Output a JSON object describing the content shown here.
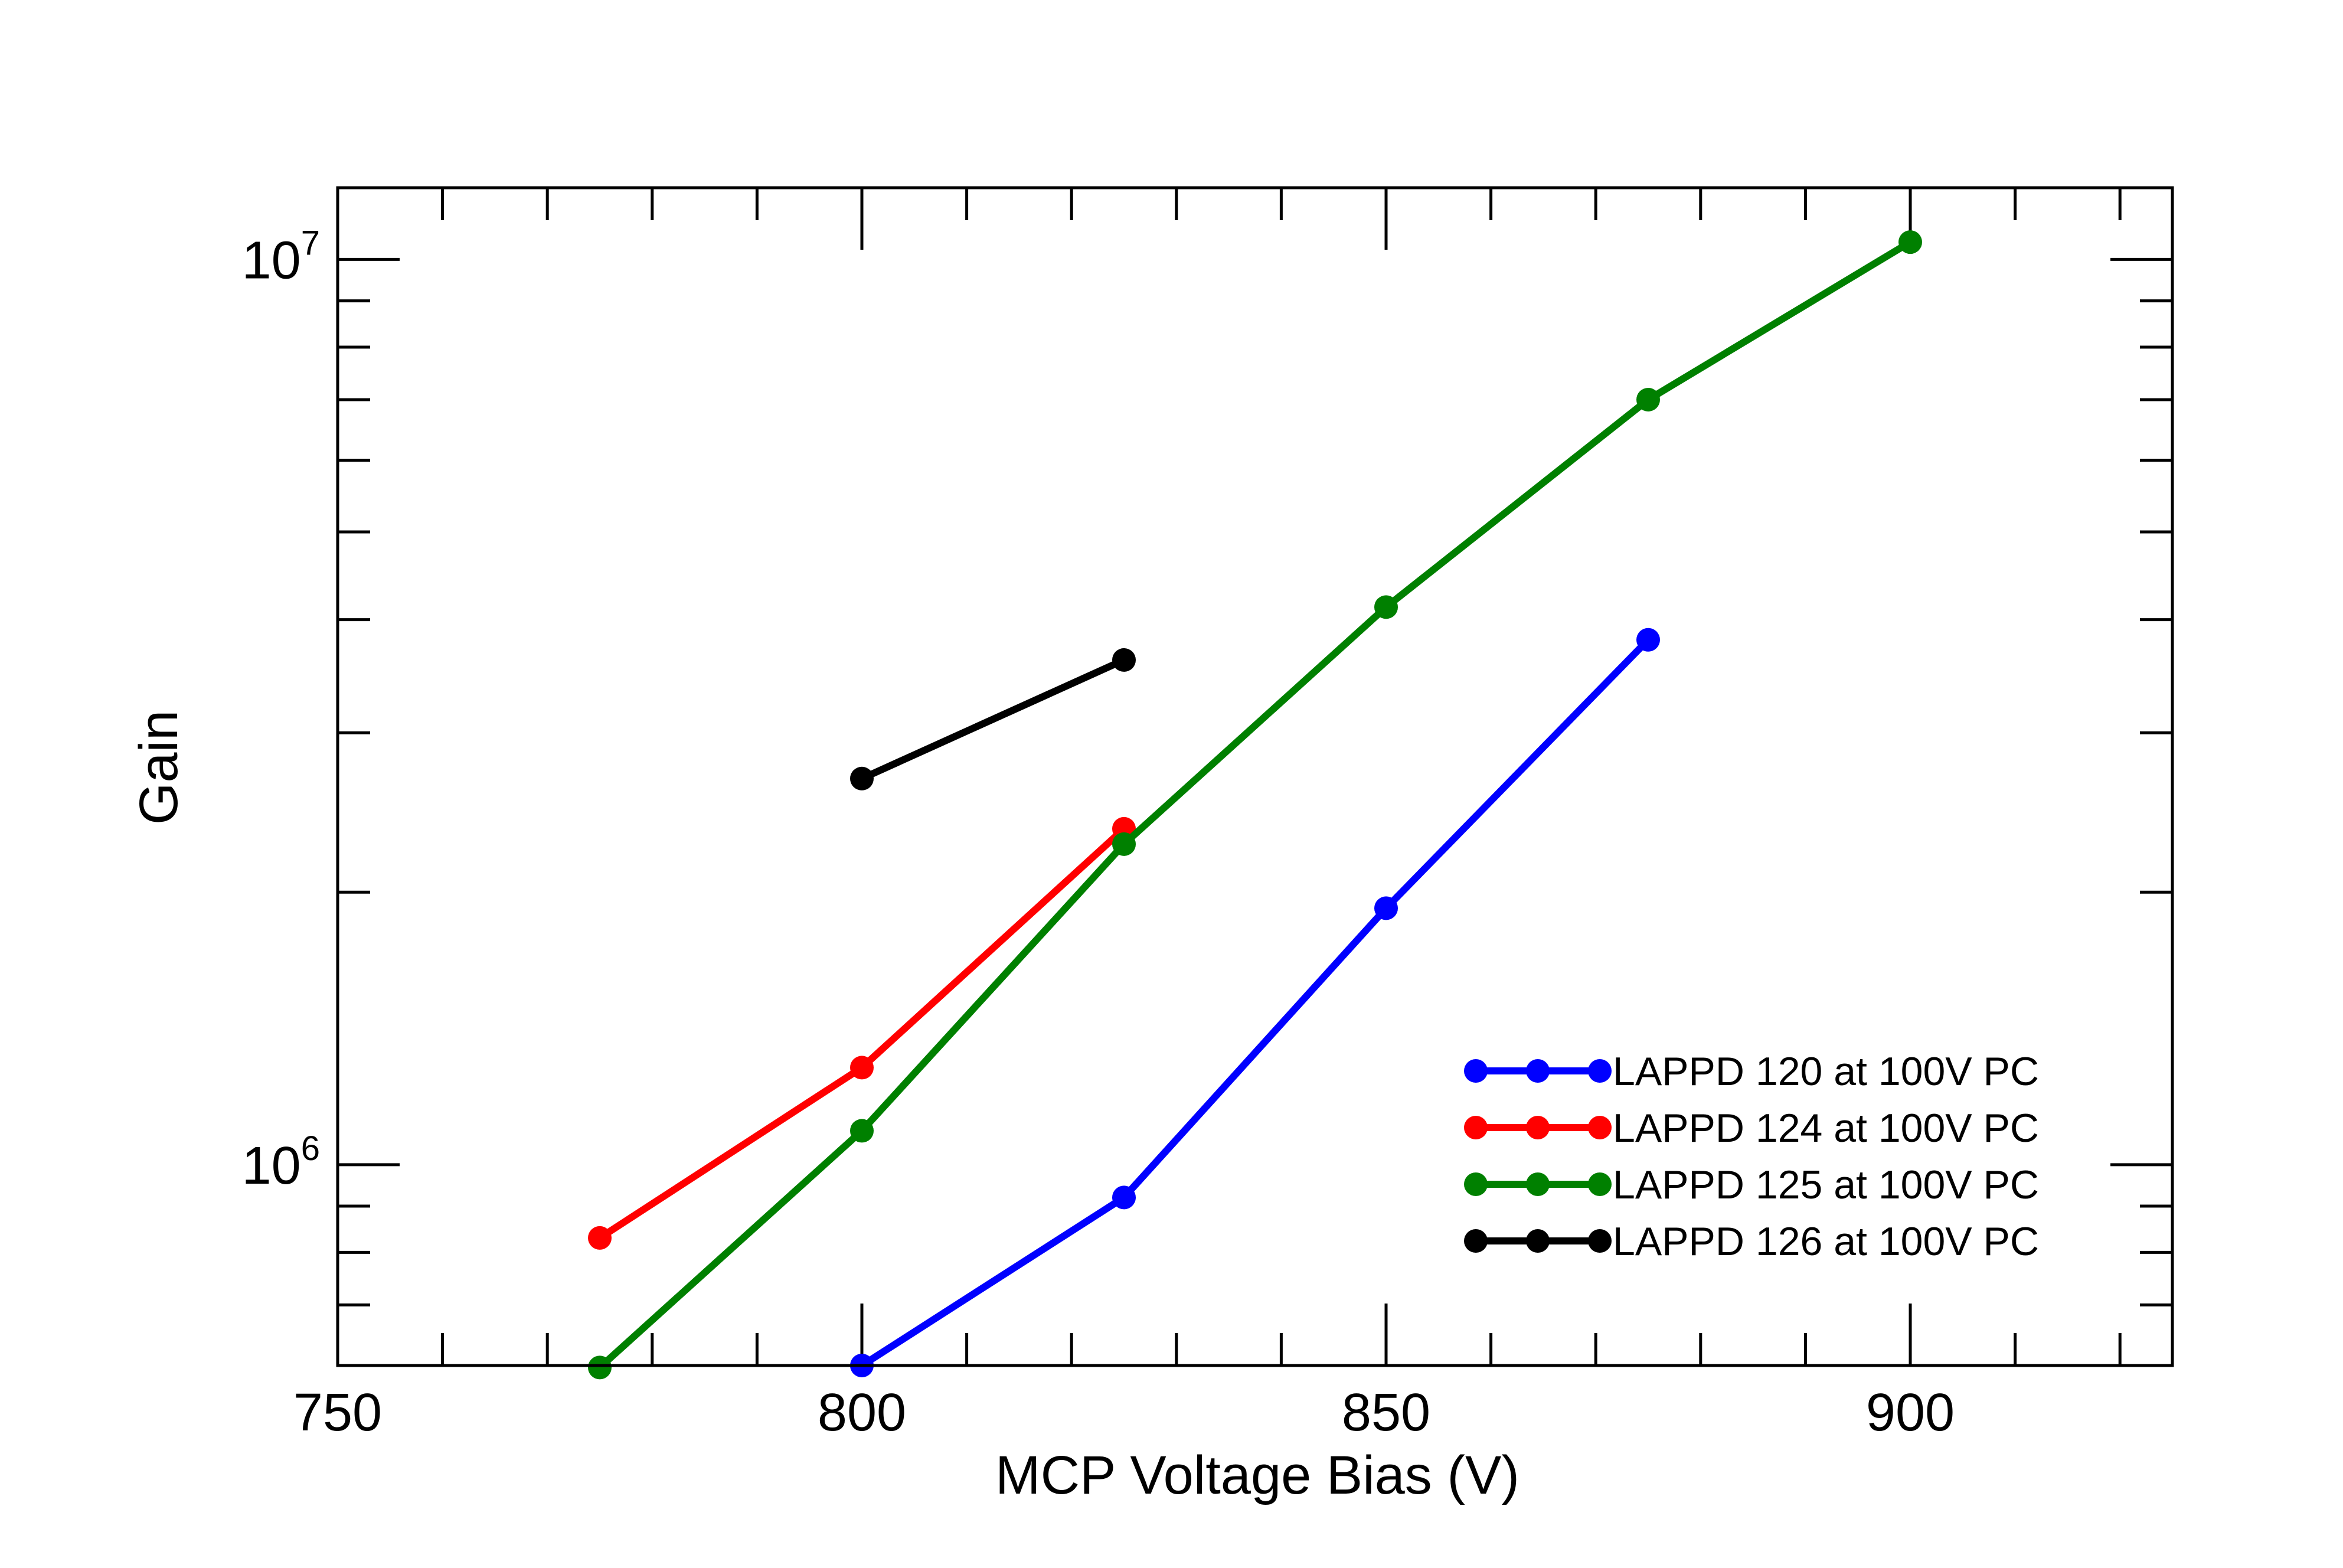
{
  "chart_data": {
    "type": "line",
    "xlabel": "MCP Voltage Bias (V)",
    "ylabel": "Gain",
    "xlim": [
      750,
      925
    ],
    "ylim": [
      600000,
      12000000
    ],
    "yscale": "log",
    "x_ticks": [
      750,
      800,
      850,
      900
    ],
    "y_ticks": [
      {
        "value": 1000000,
        "base": "10",
        "exp": "6"
      },
      {
        "value": 10000000,
        "base": "10",
        "exp": "7"
      }
    ],
    "legend_position": "lower-right",
    "series": [
      {
        "name": "LAPPD 120 at 100V PC",
        "color": "#0000ff",
        "points": [
          [
            800,
            600000
          ],
          [
            825,
            920000
          ],
          [
            850,
            1920000
          ],
          [
            875,
            3800000
          ]
        ]
      },
      {
        "name": "LAPPD 124 at 100V PC",
        "color": "#ff0000",
        "points": [
          [
            775,
            830000
          ],
          [
            800,
            1280000
          ],
          [
            825,
            2350000
          ]
        ]
      },
      {
        "name": "LAPPD 125 at 100V PC",
        "color": "#008000",
        "points": [
          [
            775,
            597000
          ],
          [
            800,
            1090000
          ],
          [
            825,
            2260000
          ],
          [
            850,
            4130000
          ],
          [
            875,
            7000000
          ],
          [
            900,
            10450000
          ]
        ]
      },
      {
        "name": "LAPPD 126 at 100V PC",
        "color": "#000000",
        "points": [
          [
            800,
            2670000
          ],
          [
            825,
            3610000
          ]
        ]
      }
    ]
  }
}
